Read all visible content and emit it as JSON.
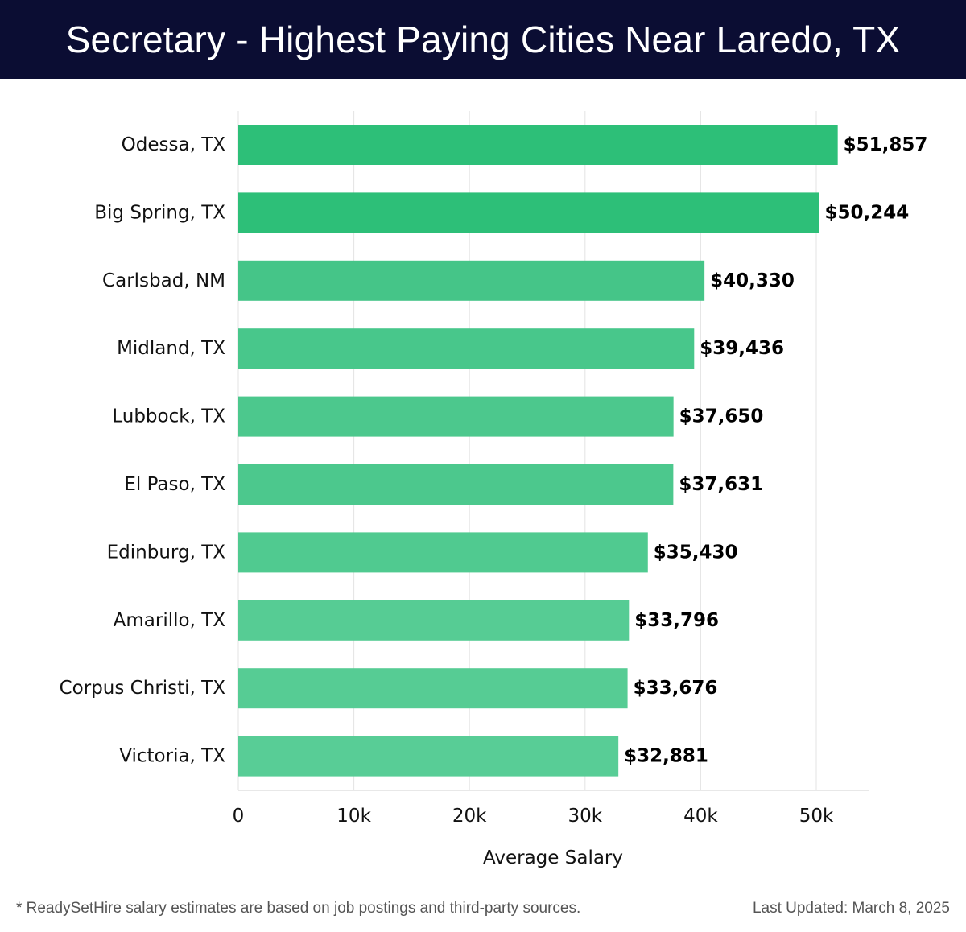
{
  "header": {
    "title": "Secretary - Highest Paying Cities Near Laredo, TX"
  },
  "chart_data": {
    "type": "bar",
    "orientation": "horizontal",
    "title": "Secretary - Highest Paying Cities Near Laredo, TX",
    "xlabel": "Average Salary",
    "ylabel": "",
    "xlim": [
      0,
      54500
    ],
    "xticks": [
      0,
      10000,
      20000,
      30000,
      40000,
      50000
    ],
    "xtick_labels": [
      "0",
      "10k",
      "20k",
      "30k",
      "40k",
      "50k"
    ],
    "grid": true,
    "categories": [
      "Odessa, TX",
      "Big Spring, TX",
      "Carlsbad, NM",
      "Midland, TX",
      "Lubbock, TX",
      "El Paso, TX",
      "Edinburg, TX",
      "Amarillo, TX",
      "Corpus Christi, TX",
      "Victoria, TX"
    ],
    "values": [
      51857,
      50244,
      40330,
      39436,
      37650,
      37631,
      35430,
      33796,
      33676,
      32881
    ],
    "value_labels": [
      "$51,857",
      "$50,244",
      "$40,330",
      "$39,436",
      "$37,650",
      "$37,631",
      "$35,430",
      "$33,796",
      "$33,676",
      "$32,881"
    ],
    "bar_colors": [
      "#2dbf78",
      "#2dbf78",
      "#45c588",
      "#48c78b",
      "#4cc88d",
      "#4cc88d",
      "#50ca90",
      "#56cc94",
      "#56cc94",
      "#58cd96"
    ]
  },
  "footer": {
    "footnote": "* ReadySetHire salary estimates are based on job postings and third-party sources.",
    "last_updated": "Last Updated: March 8, 2025"
  }
}
